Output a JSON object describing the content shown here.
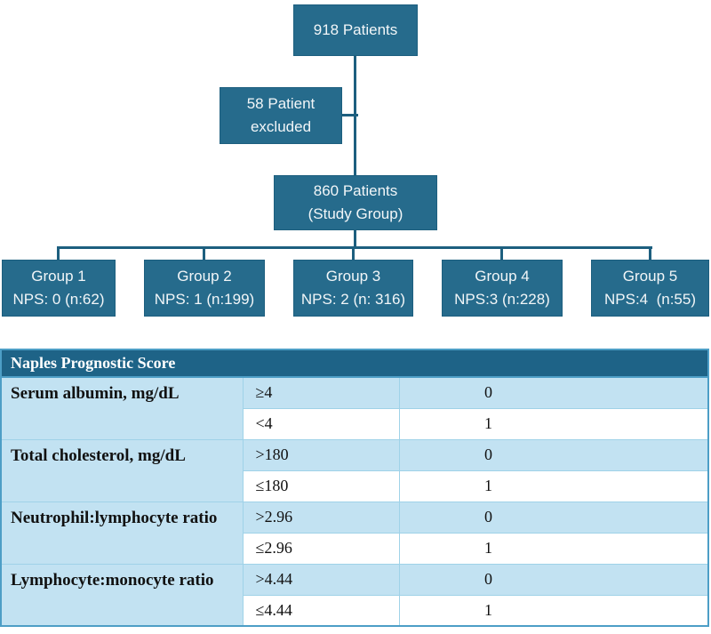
{
  "flowchart": {
    "top_box": {
      "label": "918 Patients"
    },
    "excluded_box": {
      "line1": "58 Patient",
      "line2": "excluded"
    },
    "study_box": {
      "line1": "860 Patients",
      "line2": "(Study Group)"
    },
    "groups": [
      {
        "name": "Group 1",
        "nps": "NPS: 0 (n:62)"
      },
      {
        "name": "Group 2",
        "nps": "NPS: 1 (n:199)"
      },
      {
        "name": "Group 3",
        "nps": "NPS: 2 (n: 316)"
      },
      {
        "name": "Group 4",
        "nps": "NPS:3 (n:228)"
      },
      {
        "name": "Group 5",
        "nps": "NPS:4  (n:55)"
      }
    ]
  },
  "table": {
    "header": "Naples Prognostic Score",
    "rows": [
      {
        "parameter": "Serum albumin, mg/dL",
        "high": {
          "threshold": "≥4",
          "score": "0"
        },
        "low": {
          "threshold": "<4",
          "score": "1"
        }
      },
      {
        "parameter": "Total cholesterol, mg/dL",
        "high": {
          "threshold": ">180",
          "score": "0"
        },
        "low": {
          "threshold": "≤180",
          "score": "1"
        }
      },
      {
        "parameter": "Neutrophil:lymphocyte ratio",
        "high": {
          "threshold": ">2.96",
          "score": "0"
        },
        "low": {
          "threshold": "≤2.96",
          "score": "1"
        }
      },
      {
        "parameter": "Lymphocyte:monocyte ratio",
        "high": {
          "threshold": ">4.44",
          "score": "0"
        },
        "low": {
          "threshold": "≤4.44",
          "score": "1"
        }
      }
    ]
  },
  "colors": {
    "box_teal": "#266b8c",
    "header_teal": "#1e6387",
    "row_light_blue": "#c2e2f2",
    "table_border": "#4d9ec6",
    "connector": "#1d5f7f"
  }
}
